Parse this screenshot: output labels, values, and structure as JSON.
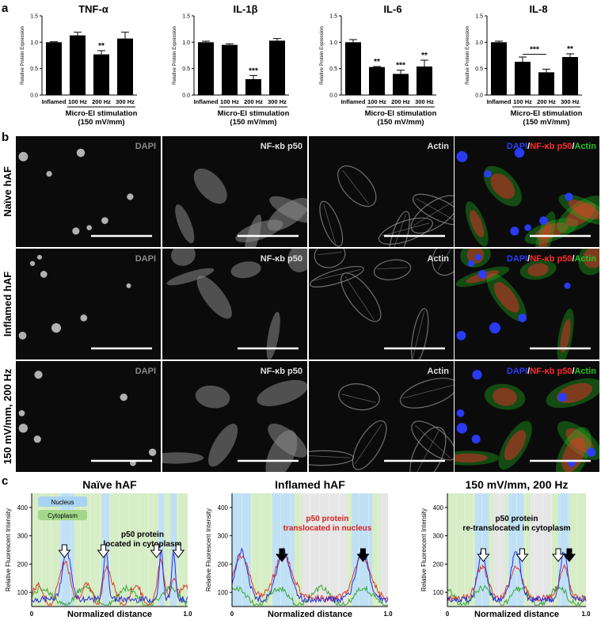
{
  "panels": {
    "a": "a",
    "b": "b",
    "c": "c"
  },
  "chart_data": [
    {
      "type": "bar",
      "title": "TNF-α",
      "ylabel": "Relative Protein Expression",
      "ylim": [
        0,
        1.5
      ],
      "yticks": [
        "0.0",
        "0.5",
        "1.0",
        "1.5"
      ],
      "categories": [
        "Inflamed",
        "100 Hz",
        "200 Hz",
        "300 Hz"
      ],
      "values": [
        1.0,
        1.13,
        0.77,
        1.07
      ],
      "errors": [
        0.01,
        0.06,
        0.07,
        0.12
      ],
      "significance": [
        "",
        "",
        "**",
        ""
      ],
      "bracket": null,
      "group_label": [
        "Micro-El stimulation",
        "(150 mV/mm)"
      ]
    },
    {
      "type": "bar",
      "title": "IL-1β",
      "ylabel": "Relative Protein Expression",
      "ylim": [
        0,
        1.5
      ],
      "yticks": [
        "0.0",
        "0.5",
        "1.0",
        "1.5"
      ],
      "categories": [
        "Inflamed",
        "100 Hz",
        "200 Hz",
        "300 Hz"
      ],
      "values": [
        1.0,
        0.95,
        0.3,
        1.03
      ],
      "errors": [
        0.02,
        0.02,
        0.07,
        0.04
      ],
      "significance": [
        "",
        "",
        "***",
        ""
      ],
      "bracket": null,
      "group_label": [
        "Micro-El stimulation",
        "(150 mV/mm)"
      ]
    },
    {
      "type": "bar",
      "title": "IL-6",
      "ylabel": "Relative Protein Expression",
      "ylim": [
        0,
        1.5
      ],
      "yticks": [
        "0.0",
        "0.5",
        "1.0",
        "1.5"
      ],
      "categories": [
        "Inflamed",
        "100 Hz",
        "200 Hz",
        "300 Hz"
      ],
      "values": [
        1.0,
        0.53,
        0.4,
        0.54
      ],
      "errors": [
        0.05,
        0.01,
        0.07,
        0.12
      ],
      "significance": [
        "",
        "**",
        "***",
        "**"
      ],
      "bracket": null,
      "group_label": [
        "Micro-El stimulation",
        "(150 mV/mm)"
      ]
    },
    {
      "type": "bar",
      "title": "IL-8",
      "ylabel": "Relative Protein Expression",
      "ylim": [
        0,
        1.5
      ],
      "yticks": [
        "0.0",
        "0.5",
        "1.0",
        "1.5"
      ],
      "categories": [
        "Inflamed",
        "100 Hz",
        "200 Hz",
        "300 Hz"
      ],
      "values": [
        1.0,
        0.63,
        0.43,
        0.72
      ],
      "errors": [
        0.02,
        0.09,
        0.06,
        0.06
      ],
      "significance": [
        "",
        "",
        "",
        "**"
      ],
      "bracket": {
        "from": 1,
        "to": 2,
        "label": "***"
      },
      "group_label": [
        "Micro-El stimulation",
        "(150 mV/mm)"
      ]
    }
  ],
  "micrographs": {
    "rows": [
      "Naïve hAF",
      "Inflamed hAF",
      "150 mV/mm, 200 Hz"
    ],
    "cols": [
      "DAPI",
      "NF-κb p50",
      "Actin",
      "merge"
    ],
    "merge_parts": [
      "DAPI",
      "/",
      "NF-κb p50",
      "/",
      "Actin"
    ],
    "colors": {
      "dapi": "#2a3dff",
      "p50": "#ff2a2a",
      "actin": "#22c322"
    }
  },
  "profiles": [
    {
      "title": "Naïve hAF",
      "ylabel": "Relative Fluorescent Intensity",
      "xlabel": "Normalized distance",
      "xticks": [
        "0",
        "1.0"
      ],
      "yticks": [
        "100",
        "200",
        "300",
        "400"
      ],
      "legend": [
        "Nucleus",
        "Cytoplasm"
      ],
      "annotation": [
        "p50 protein",
        "located in cytoplasm"
      ],
      "annotation_color": "#000000",
      "nuclei": [
        [
          0.18,
          0.27
        ],
        [
          0.45,
          0.5
        ],
        [
          0.81,
          0.85
        ],
        [
          0.89,
          0.93
        ]
      ],
      "arrows": [
        {
          "x": 0.21,
          "filled": false
        },
        {
          "x": 0.46,
          "filled": false
        },
        {
          "x": 0.8,
          "filled": false
        },
        {
          "x": 0.94,
          "filled": false
        }
      ]
    },
    {
      "title": "Inflamed hAF",
      "ylabel": "Relative Fluorescent Intensity",
      "xlabel": "Normalized distance",
      "xticks": [
        "0",
        "1.0"
      ],
      "yticks": [
        "100",
        "200",
        "300",
        "400"
      ],
      "legend": [],
      "annotation": [
        "p50 protein",
        "translocated in nucleus"
      ],
      "annotation_color": "#d42020",
      "nuclei": [
        [
          0.0,
          0.12
        ],
        [
          0.26,
          0.4
        ],
        [
          0.77,
          0.9
        ]
      ],
      "arrows": [
        {
          "x": 0.32,
          "filled": true
        },
        {
          "x": 0.84,
          "filled": true
        }
      ]
    },
    {
      "title": "150 mV/mm, 200 Hz",
      "ylabel": "Relative Fluorescent Intensity",
      "xlabel": "Normalized distance",
      "xticks": [
        "0",
        "1.0"
      ],
      "yticks": [
        "100",
        "200",
        "300",
        "400"
      ],
      "legend": [],
      "annotation": [
        "p50 protein",
        "re-translocated in cytoplasm"
      ],
      "annotation_color": "#000000",
      "nuclei": [
        [
          0.2,
          0.3
        ],
        [
          0.44,
          0.55
        ],
        [
          0.8,
          0.88
        ]
      ],
      "arrows": [
        {
          "x": 0.26,
          "filled": false
        },
        {
          "x": 0.54,
          "filled": false
        },
        {
          "x": 0.8,
          "filled": false
        },
        {
          "x": 0.88,
          "filled": true
        }
      ]
    }
  ]
}
